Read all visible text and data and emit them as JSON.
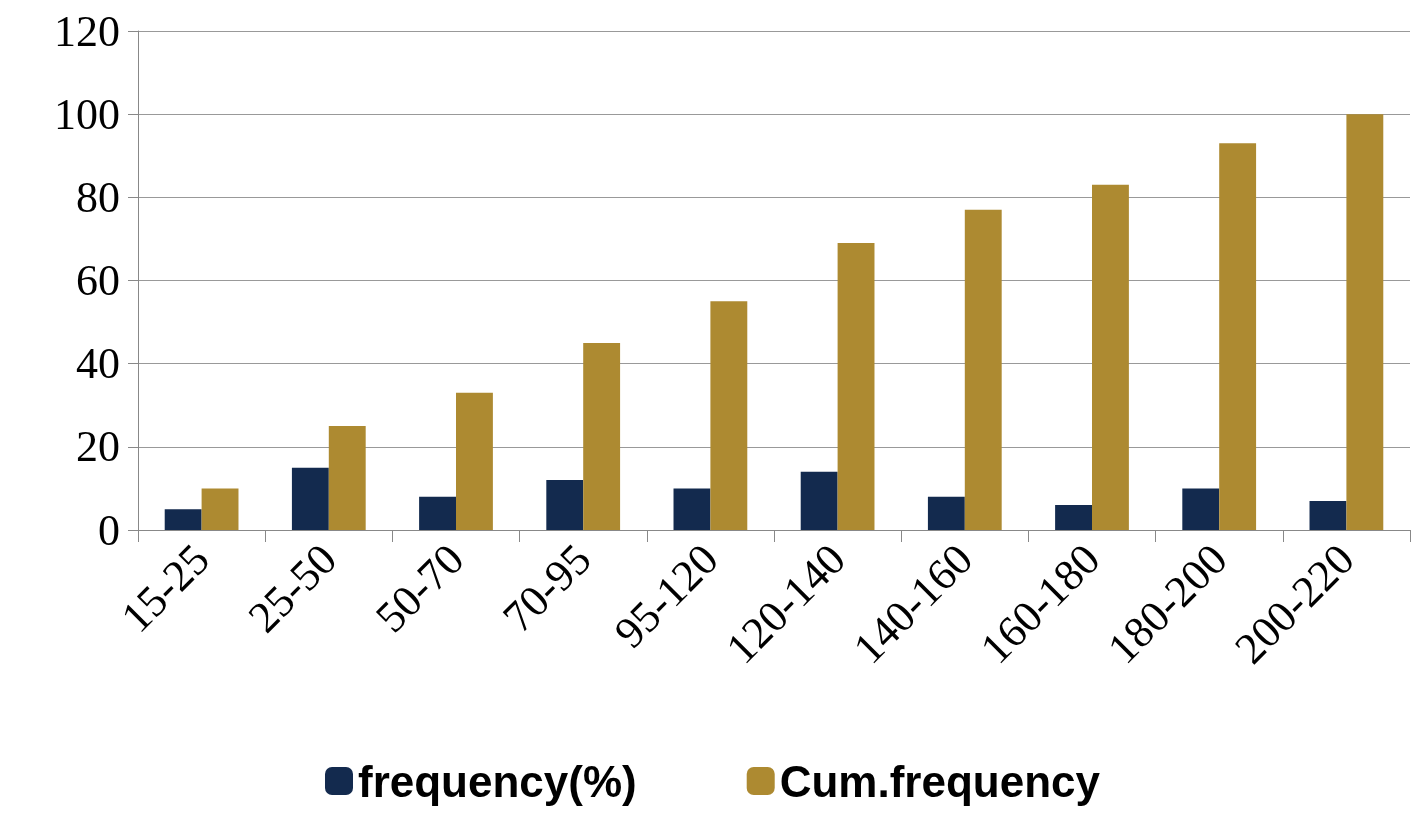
{
  "chart_data": {
    "type": "bar",
    "categories": [
      "15-25",
      "25-50",
      "50-70",
      "70-95",
      "95-120",
      "120-140",
      "140-160",
      "160-180",
      "180-200",
      "200-220"
    ],
    "series": [
      {
        "name": "frequency(%)",
        "color": "#132a4e",
        "values": [
          5,
          15,
          8,
          12,
          10,
          14,
          8,
          6,
          10,
          7
        ]
      },
      {
        "name": "Cum.frequency",
        "color": "#ad8a31",
        "values": [
          10,
          25,
          33,
          45,
          55,
          69,
          77,
          83,
          93,
          100
        ]
      }
    ],
    "ylim": [
      0,
      120
    ],
    "yticks": [
      0,
      20,
      40,
      60,
      80,
      100,
      120
    ],
    "grid": "y",
    "legend": "bottom"
  }
}
